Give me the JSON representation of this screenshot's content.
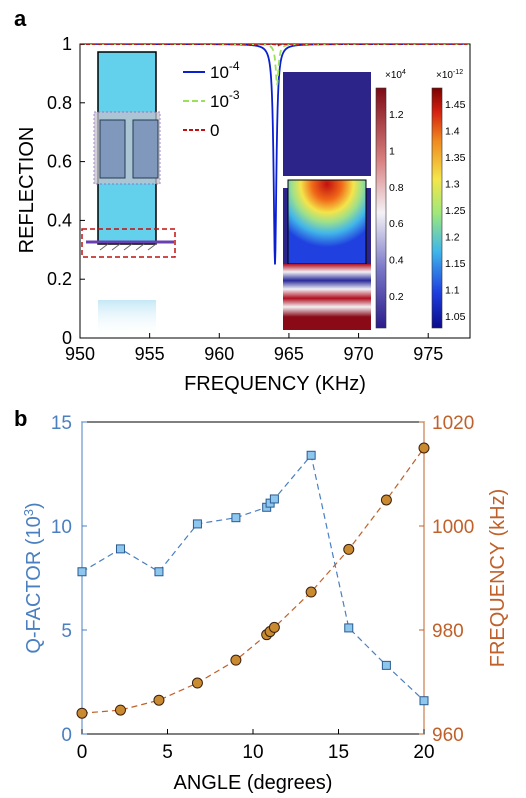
{
  "panels": {
    "a": {
      "label": "a"
    },
    "b": {
      "label": "b"
    }
  },
  "colors": {
    "series_1e4": "#0a1fd0",
    "series_1e3": "#9be05a",
    "series_0": "#c01010",
    "q_factor": "#4a7fc0",
    "q_marker": "#8ec7ee",
    "frequency": "#c0602a",
    "freq_marker": "#c98a30"
  },
  "chart_data": [
    {
      "type": "line",
      "panel": "a",
      "xlabel": "FREQUENCY (KHz)",
      "ylabel": "REFLECTION",
      "xlim": [
        950,
        978
      ],
      "ylim": [
        0,
        1
      ],
      "xticks": [
        950,
        955,
        960,
        965,
        970,
        975
      ],
      "yticks": [
        0,
        0.2,
        0.4,
        0.6,
        0.8,
        1
      ],
      "legend_position": "top-center",
      "series": [
        {
          "name": "10^-4",
          "legend_base": "10",
          "legend_exp": "-4",
          "style": "solid",
          "resonance": {
            "center": 964,
            "min": 0.25
          }
        },
        {
          "name": "10^-3",
          "legend_base": "10",
          "legend_exp": "-3",
          "style": "dashed",
          "resonance": {
            "center": 964.15,
            "min": 0.86
          }
        },
        {
          "name": "0",
          "legend_base": "0",
          "legend_exp": "",
          "style": "dashed",
          "resonance": {
            "center": 964.2,
            "min": 0.995
          }
        }
      ],
      "colorbars": [
        {
          "exponent_label": "×10",
          "exponent_sup": "4",
          "ticks": [
            "1.2",
            "1",
            "0.8",
            "0.6",
            "0.4",
            "0.2"
          ]
        },
        {
          "exponent_label": "×10",
          "exponent_sup": "-12",
          "ticks": [
            "1.45",
            "1.4",
            "1.35",
            "1.3",
            "1.25",
            "1.2",
            "1.15",
            "1.1",
            "1.05"
          ]
        }
      ]
    },
    {
      "type": "scatter",
      "panel": "b",
      "xlabel": "ANGLE (degrees)",
      "xlim": [
        0,
        20
      ],
      "xticks": [
        0,
        5,
        10,
        15,
        20
      ],
      "y_left": {
        "label": "Q-FACTOR (10",
        "label_sup": "3",
        "label_end": ")",
        "lim": [
          0,
          15
        ],
        "ticks": [
          0,
          5,
          10,
          15
        ]
      },
      "y_right": {
        "label": "FREQUENCY (kHz)",
        "lim": [
          960,
          1020
        ],
        "ticks": [
          960,
          980,
          1000,
          1020
        ]
      },
      "series": [
        {
          "axis": "left",
          "marker": "square",
          "x": [
            0,
            2.25,
            4.5,
            6.75,
            9,
            10.8,
            11,
            11.25,
            13.4,
            15.6,
            17.8,
            20
          ],
          "y": [
            7.8,
            8.9,
            7.8,
            10.1,
            10.4,
            10.9,
            11.1,
            11.3,
            13.4,
            5.1,
            3.3,
            1.6
          ]
        },
        {
          "axis": "right",
          "marker": "circle",
          "x": [
            0,
            2.25,
            4.5,
            6.75,
            9,
            10.8,
            11,
            11.25,
            13.4,
            15.6,
            17.8,
            20
          ],
          "y": [
            964,
            964.6,
            966.5,
            969.8,
            974.2,
            979.1,
            979.7,
            980.5,
            987.3,
            995.5,
            1005,
            1015
          ]
        }
      ]
    }
  ]
}
